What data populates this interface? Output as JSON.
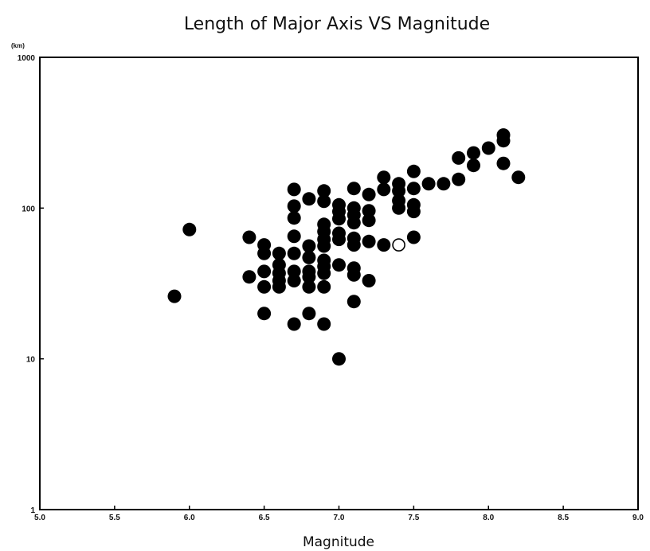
{
  "chart_data": {
    "type": "scatter",
    "title": "Length of Major Axis VS Magnitude",
    "xlabel": "Magnitude",
    "ylabel": "",
    "y_unit_label": "(km)",
    "x_scale": "linear",
    "y_scale": "log",
    "xlim": [
      5.0,
      9.0
    ],
    "ylim": [
      1,
      1000
    ],
    "x_ticks": [
      "5.0",
      "5.5",
      "6.0",
      "6.5",
      "7.0",
      "7.5",
      "8.0",
      "8.5",
      "9.0"
    ],
    "y_ticks": [
      "1",
      "10",
      "100",
      "1000"
    ],
    "grid": false,
    "legend": "none",
    "colors": {
      "filled": "#000000",
      "open": "#ffffff",
      "axis": "#000000"
    },
    "series": [
      {
        "marker": "filled-circle",
        "points": [
          [
            5.9,
            26
          ],
          [
            6.0,
            72
          ],
          [
            6.4,
            64
          ],
          [
            6.4,
            35
          ],
          [
            6.5,
            57
          ],
          [
            6.5,
            50
          ],
          [
            6.5,
            38
          ],
          [
            6.5,
            30
          ],
          [
            6.5,
            20
          ],
          [
            6.6,
            50
          ],
          [
            6.6,
            42
          ],
          [
            6.6,
            37
          ],
          [
            6.6,
            33
          ],
          [
            6.6,
            30
          ],
          [
            6.7,
            133
          ],
          [
            6.7,
            103
          ],
          [
            6.7,
            86
          ],
          [
            6.7,
            65
          ],
          [
            6.7,
            50
          ],
          [
            6.7,
            38
          ],
          [
            6.7,
            33
          ],
          [
            6.7,
            17
          ],
          [
            6.8,
            115
          ],
          [
            6.8,
            56
          ],
          [
            6.8,
            47
          ],
          [
            6.8,
            38
          ],
          [
            6.8,
            35
          ],
          [
            6.8,
            30
          ],
          [
            6.8,
            20
          ],
          [
            6.9,
            130
          ],
          [
            6.9,
            111
          ],
          [
            6.9,
            78
          ],
          [
            6.9,
            70
          ],
          [
            6.9,
            62
          ],
          [
            6.9,
            56
          ],
          [
            6.9,
            45
          ],
          [
            6.9,
            41
          ],
          [
            6.9,
            37
          ],
          [
            6.9,
            30
          ],
          [
            6.9,
            17
          ],
          [
            7.0,
            105
          ],
          [
            7.0,
            95
          ],
          [
            7.0,
            85
          ],
          [
            7.0,
            68
          ],
          [
            7.0,
            62
          ],
          [
            7.0,
            42
          ],
          [
            7.0,
            10
          ],
          [
            7.1,
            135
          ],
          [
            7.1,
            100
          ],
          [
            7.1,
            90
          ],
          [
            7.1,
            80
          ],
          [
            7.1,
            63
          ],
          [
            7.1,
            57
          ],
          [
            7.1,
            40
          ],
          [
            7.1,
            36
          ],
          [
            7.1,
            24
          ],
          [
            7.2,
            123
          ],
          [
            7.2,
            96
          ],
          [
            7.2,
            83
          ],
          [
            7.2,
            60
          ],
          [
            7.2,
            33
          ],
          [
            7.3,
            160
          ],
          [
            7.3,
            133
          ],
          [
            7.3,
            57
          ],
          [
            7.4,
            145
          ],
          [
            7.4,
            130
          ],
          [
            7.4,
            112
          ],
          [
            7.4,
            100
          ],
          [
            7.5,
            175
          ],
          [
            7.5,
            135
          ],
          [
            7.5,
            105
          ],
          [
            7.5,
            95
          ],
          [
            7.5,
            64
          ],
          [
            7.6,
            145
          ],
          [
            7.7,
            145
          ],
          [
            7.8,
            215
          ],
          [
            7.8,
            155
          ],
          [
            7.9,
            232
          ],
          [
            7.9,
            192
          ],
          [
            8.0,
            250
          ],
          [
            8.1,
            305
          ],
          [
            8.1,
            280
          ],
          [
            8.1,
            198
          ],
          [
            8.2,
            160
          ]
        ]
      },
      {
        "marker": "open-circle",
        "points": [
          [
            7.4,
            57
          ]
        ]
      }
    ]
  }
}
